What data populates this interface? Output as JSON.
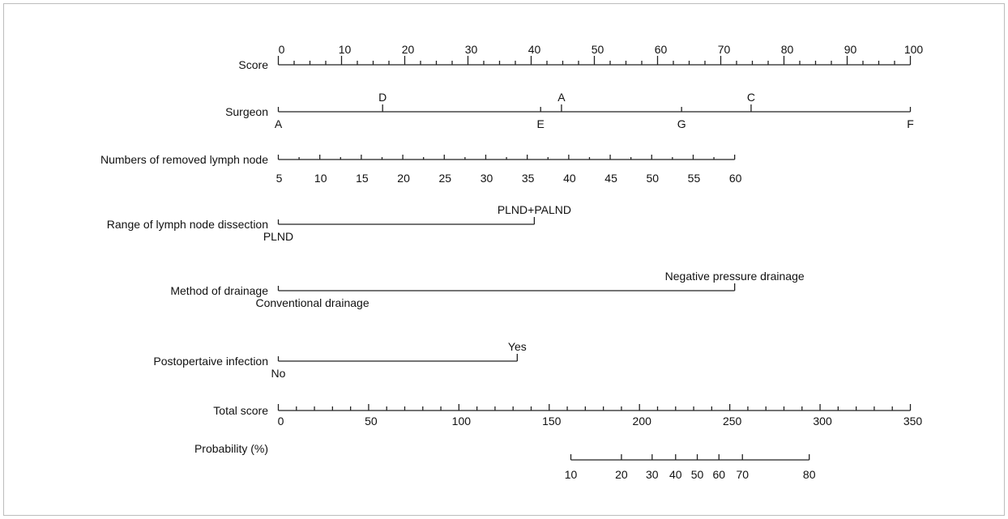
{
  "chart_data": {
    "type": "nomogram",
    "rows": [
      {
        "label": "Score",
        "kind": "points",
        "range": [
          0,
          100
        ],
        "labels": [
          "0",
          "10",
          "20",
          "30",
          "40",
          "50",
          "60",
          "70",
          "80",
          "90",
          "100"
        ],
        "label_side": "above"
      },
      {
        "label": "Surgeon",
        "kind": "categorical",
        "levels": [
          {
            "name": "A",
            "points": 0,
            "side": "below"
          },
          {
            "name": "D",
            "points": 16.5,
            "side": "above"
          },
          {
            "name": "E",
            "points": 41.5,
            "side": "below"
          },
          {
            "name": "A",
            "points": 44.8,
            "side": "above"
          },
          {
            "name": "G",
            "points": 63.8,
            "side": "below"
          },
          {
            "name": "C",
            "points": 74.8,
            "side": "above"
          },
          {
            "name": "F",
            "points": 100,
            "side": "below"
          }
        ]
      },
      {
        "label": "Numbers of removed lymph node",
        "kind": "continuous",
        "values": [
          5,
          10,
          15,
          20,
          25,
          30,
          35,
          40,
          45,
          50,
          55,
          60
        ],
        "points_range": [
          0,
          72.2
        ],
        "label_side": "below"
      },
      {
        "label": "Range of lymph node dissection",
        "kind": "categorical",
        "levels": [
          {
            "name": "PLND",
            "points": 0,
            "side": "below"
          },
          {
            "name": "PLND+PALND",
            "points": 40.5,
            "side": "above"
          }
        ]
      },
      {
        "label": "Method of drainage",
        "kind": "categorical",
        "levels": [
          {
            "name": "Conventional drainage",
            "points": 0,
            "side": "below"
          },
          {
            "name": "Negative pressure drainage",
            "points": 72.2,
            "side": "above"
          }
        ]
      },
      {
        "label": "Postopertaive infection",
        "kind": "categorical",
        "levels": [
          {
            "name": "No",
            "points": 0,
            "side": "below"
          },
          {
            "name": "Yes",
            "points": 37.8,
            "side": "above"
          }
        ]
      },
      {
        "label": "Total score",
        "kind": "points",
        "range": [
          0,
          350
        ],
        "labels": [
          "0",
          "50",
          "100",
          "150",
          "200",
          "250",
          "300",
          "350"
        ],
        "label_side": "below"
      },
      {
        "label": "Probability (%)",
        "kind": "probability",
        "ticks": [
          {
            "value": "10",
            "total_points": 162
          },
          {
            "value": "20",
            "total_points": 190
          },
          {
            "value": "30",
            "total_points": 207
          },
          {
            "value": "40",
            "total_points": 220
          },
          {
            "value": "50",
            "total_points": 232
          },
          {
            "value": "60",
            "total_points": 244
          },
          {
            "value": "70",
            "total_points": 257
          },
          {
            "value": "80",
            "total_points": 294
          }
        ],
        "label_side": "below"
      }
    ]
  }
}
